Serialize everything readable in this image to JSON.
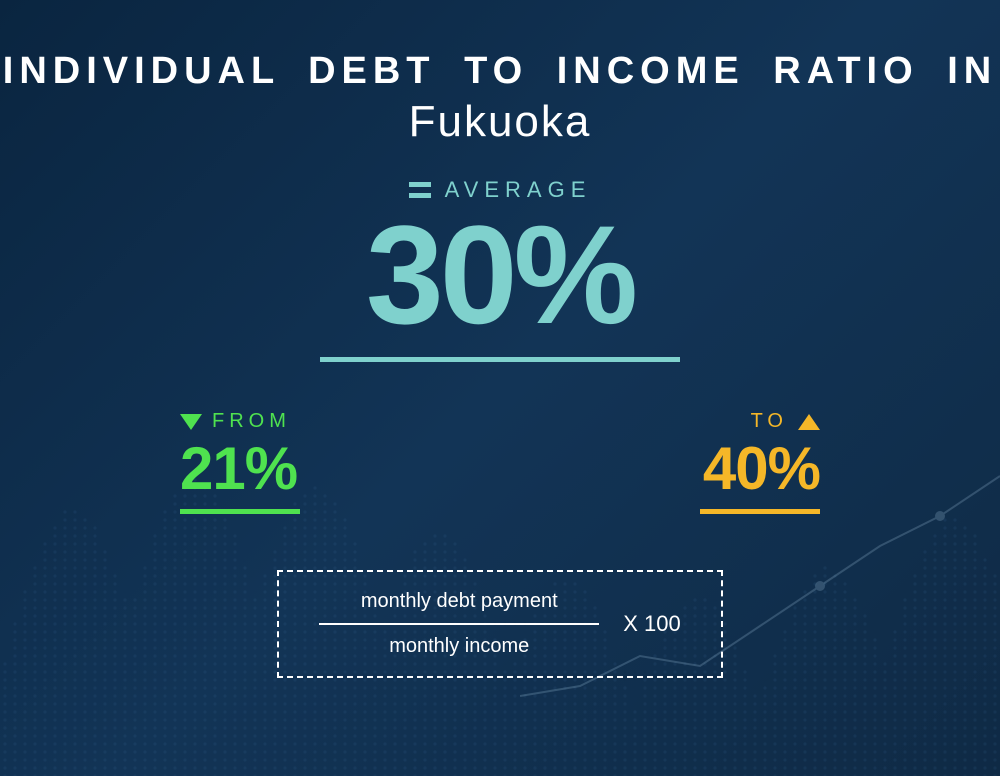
{
  "title": {
    "line1": "INDIVIDUAL DEBT TO INCOME RATIO IN",
    "line2": "Fukuoka",
    "color": "#ffffff"
  },
  "average": {
    "label": "AVERAGE",
    "value": "30%",
    "color": "#7fd1cd",
    "underline_color": "#7fd1cd"
  },
  "from": {
    "label": "FROM",
    "value": "21%",
    "color": "#4fe24f",
    "underline_color": "#4fe24f"
  },
  "to": {
    "label": "TO",
    "value": "40%",
    "color": "#f5b728",
    "underline_color": "#f5b728"
  },
  "formula": {
    "numerator": "monthly debt payment",
    "denominator": "monthly income",
    "multiplier": "X 100",
    "border_color": "#ffffff",
    "text_color": "#ffffff"
  },
  "background": {
    "gradient_from": "#0a2540",
    "gradient_to": "#0f2a45",
    "dot_color": "#3a6a9a",
    "line_color": "#5a8ab0"
  }
}
